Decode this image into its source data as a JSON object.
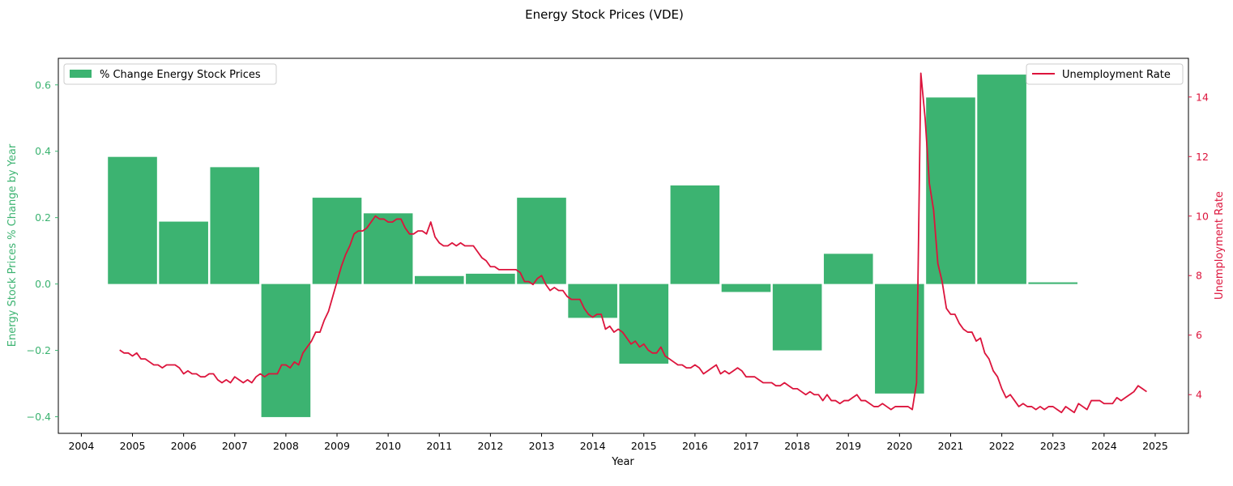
{
  "chart_data": {
    "type": "bar+line",
    "title": "Energy Stock Prices (VDE)",
    "xlabel": "Year",
    "ylabel_left": "Energy Stock Prices % Change by Year",
    "ylabel_right": "Unemployment Rate",
    "x_ticks": [
      "2004",
      "2005",
      "2006",
      "2007",
      "2008",
      "2009",
      "2010",
      "2011",
      "2012",
      "2013",
      "2014",
      "2015",
      "2016",
      "2017",
      "2018",
      "2019",
      "2020",
      "2021",
      "2022",
      "2023",
      "2024",
      "2025"
    ],
    "y_left_ticks": [
      "−0.4",
      "−0.2",
      "0.0",
      "0.2",
      "0.4",
      "0.6"
    ],
    "y_right_ticks": [
      "4",
      "6",
      "8",
      "10",
      "12",
      "14"
    ],
    "xlim": [
      2003.55,
      2025.65
    ],
    "ylim_left": [
      -0.45,
      0.68
    ],
    "ylim_right": [
      2.7,
      15.3
    ],
    "colors": {
      "bars": "#3cb371",
      "line": "#dc143c",
      "left_axis": "#3cb371",
      "right_axis": "#dc143c"
    },
    "legend": {
      "bars_label": "% Change Energy Stock Prices",
      "line_label": "Unemployment Rate",
      "bars_position": "upper-left",
      "line_position": "upper-right"
    },
    "bar_series": {
      "name": "% Change Energy Stock Prices",
      "categories": [
        "2005",
        "2006",
        "2007",
        "2008",
        "2009",
        "2010",
        "2011",
        "2012",
        "2013",
        "2014",
        "2015",
        "2016",
        "2017",
        "2018",
        "2019",
        "2020",
        "2021",
        "2022",
        "2023"
      ],
      "values": [
        0.383,
        0.188,
        0.352,
        -0.401,
        0.26,
        0.213,
        0.024,
        0.031,
        0.26,
        -0.102,
        -0.24,
        0.297,
        -0.024,
        -0.2,
        0.091,
        -0.33,
        0.562,
        0.631,
        0.005
      ]
    },
    "line_series": {
      "name": "Unemployment Rate",
      "start": "2004-10",
      "frequency": "monthly",
      "values": [
        5.5,
        5.4,
        5.4,
        5.3,
        5.4,
        5.2,
        5.2,
        5.1,
        5.0,
        5.0,
        4.9,
        5.0,
        5.0,
        5.0,
        4.9,
        4.7,
        4.8,
        4.7,
        4.7,
        4.6,
        4.6,
        4.7,
        4.7,
        4.5,
        4.4,
        4.5,
        4.4,
        4.6,
        4.5,
        4.4,
        4.5,
        4.4,
        4.6,
        4.7,
        4.6,
        4.7,
        4.7,
        4.7,
        5.0,
        5.0,
        4.9,
        5.1,
        5.0,
        5.4,
        5.6,
        5.8,
        6.1,
        6.1,
        6.5,
        6.8,
        7.3,
        7.8,
        8.3,
        8.7,
        9.0,
        9.4,
        9.5,
        9.5,
        9.6,
        9.8,
        10.0,
        9.9,
        9.9,
        9.8,
        9.8,
        9.9,
        9.9,
        9.6,
        9.4,
        9.4,
        9.5,
        9.5,
        9.4,
        9.8,
        9.3,
        9.1,
        9.0,
        9.0,
        9.1,
        9.0,
        9.1,
        9.0,
        9.0,
        9.0,
        8.8,
        8.6,
        8.5,
        8.3,
        8.3,
        8.2,
        8.2,
        8.2,
        8.2,
        8.2,
        8.1,
        7.8,
        7.8,
        7.7,
        7.9,
        8.0,
        7.7,
        7.5,
        7.6,
        7.5,
        7.5,
        7.3,
        7.2,
        7.2,
        7.2,
        6.9,
        6.7,
        6.6,
        6.7,
        6.7,
        6.2,
        6.3,
        6.1,
        6.2,
        6.1,
        5.9,
        5.7,
        5.8,
        5.6,
        5.7,
        5.5,
        5.4,
        5.4,
        5.6,
        5.3,
        5.2,
        5.1,
        5.0,
        5.0,
        4.9,
        4.9,
        5.0,
        4.9,
        4.7,
        4.8,
        4.9,
        5.0,
        4.7,
        4.8,
        4.7,
        4.8,
        4.9,
        4.8,
        4.6,
        4.6,
        4.6,
        4.5,
        4.4,
        4.4,
        4.4,
        4.3,
        4.3,
        4.4,
        4.3,
        4.2,
        4.2,
        4.1,
        4.0,
        4.1,
        4.0,
        4.0,
        3.8,
        4.0,
        3.8,
        3.8,
        3.7,
        3.8,
        3.8,
        3.9,
        4.0,
        3.8,
        3.8,
        3.7,
        3.6,
        3.6,
        3.7,
        3.6,
        3.5,
        3.6,
        3.6,
        3.6,
        3.6,
        3.5,
        4.4,
        14.8,
        13.3,
        11.1,
        10.2,
        8.4,
        7.8,
        6.9,
        6.7,
        6.7,
        6.4,
        6.2,
        6.1,
        6.1,
        5.8,
        5.9,
        5.4,
        5.2,
        4.8,
        4.6,
        4.2,
        3.9,
        4.0,
        3.8,
        3.6,
        3.7,
        3.6,
        3.6,
        3.5,
        3.6,
        3.5,
        3.6,
        3.6,
        3.5,
        3.4,
        3.6,
        3.5,
        3.4,
        3.7,
        3.6,
        3.5,
        3.8,
        3.8,
        3.8,
        3.7,
        3.7,
        3.7,
        3.9,
        3.8,
        3.9,
        4.0,
        4.1,
        4.3,
        4.2,
        4.1
      ]
    }
  }
}
